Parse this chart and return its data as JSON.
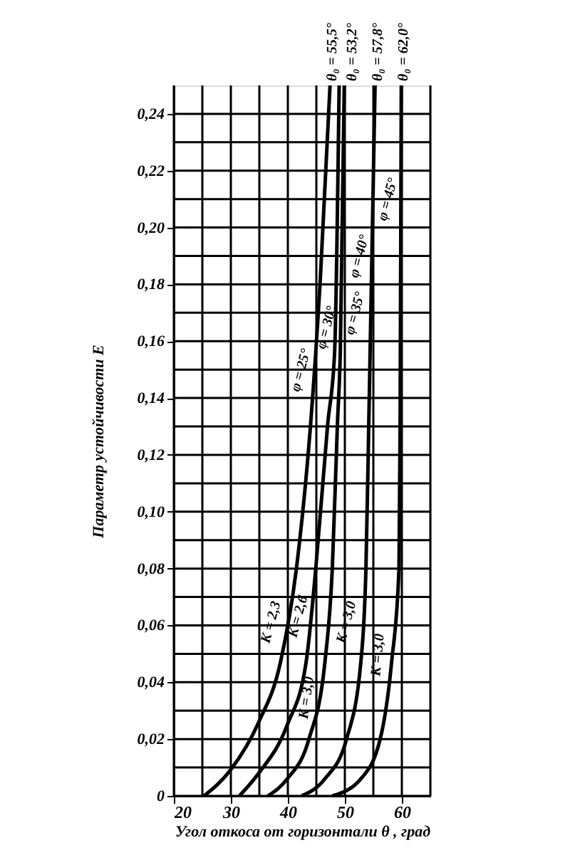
{
  "chart_data": {
    "type": "line",
    "xlabel": "Угол откоса от горизонтали θ , град",
    "ylabel": "Параметр устойчивости E",
    "xlim": [
      20,
      65
    ],
    "xticks": [
      20,
      30,
      40,
      50,
      60,
      {
        "value": 25,
        "label": null
      },
      {
        "value": 35,
        "label": null
      },
      {
        "value": 45,
        "label": null
      },
      {
        "value": 55,
        "label": null
      },
      {
        "value": 65,
        "label": null
      }
    ],
    "ylim": [
      0,
      0.25
    ],
    "yticks": [
      0,
      {
        "value": 0.01,
        "label": null
      },
      {
        "value": 0.02,
        "label": "0,02"
      },
      {
        "value": 0.03,
        "label": null
      },
      {
        "value": 0.04,
        "label": "0,04"
      },
      {
        "value": 0.05,
        "label": null
      },
      {
        "value": 0.06,
        "label": "0,06"
      },
      {
        "value": 0.07,
        "label": null
      },
      {
        "value": 0.08,
        "label": "0,08"
      },
      {
        "value": 0.09,
        "label": null
      },
      {
        "value": 0.1,
        "label": "0,10"
      },
      {
        "value": 0.11,
        "label": null
      },
      {
        "value": 0.12,
        "label": "0,12"
      },
      {
        "value": 0.13,
        "label": null
      },
      {
        "value": 0.14,
        "label": "0,14"
      },
      {
        "value": 0.15,
        "label": null
      },
      {
        "value": 0.16,
        "label": "0,16"
      },
      {
        "value": 0.17,
        "label": null
      },
      {
        "value": 0.18,
        "label": "0,18"
      },
      {
        "value": 0.19,
        "label": null
      },
      {
        "value": 0.2,
        "label": "0,20"
      },
      {
        "value": 0.21,
        "label": null
      },
      {
        "value": 0.22,
        "label": "0,22"
      },
      {
        "value": 0.23,
        "label": null
      },
      {
        "value": 0.24,
        "label": "0,24"
      }
    ],
    "grid": true,
    "marker": "none",
    "line_style": "solid",
    "series": [
      {
        "color": "#000000",
        "x": [
          25.3,
          29.9,
          34.9,
          38.7,
          41.5,
          44,
          45.7,
          47.4
        ],
        "values": [
          0,
          0.009,
          0.026,
          0.047,
          0.08,
          0.131,
          0.182,
          0.25
        ]
      },
      {
        "color": "#000000",
        "x": [
          31.5,
          34.9,
          39.9,
          43.2,
          44.9,
          47,
          48.2,
          49
        ],
        "values": [
          0,
          0.008,
          0.025,
          0.047,
          0.08,
          0.131,
          0.156,
          0.25
        ]
      },
      {
        "color": "#000000",
        "x": [
          36.5,
          39.9,
          43.7,
          46.5,
          47.8,
          48.7,
          49.2,
          49.9
        ],
        "values": [
          0,
          0.006,
          0.02,
          0.047,
          0.08,
          0.131,
          0.156,
          0.25
        ]
      },
      {
        "color": "#000000",
        "x": [
          42.4,
          46.5,
          50.3,
          52.8,
          53.7,
          54.2,
          55.3
        ],
        "values": [
          0,
          0.006,
          0.02,
          0.047,
          0.08,
          0.131,
          0.25
        ]
      },
      {
        "color": "#000000",
        "x": [
          47.8,
          52.8,
          56.2,
          58.2,
          59.5,
          59.7,
          59.9
        ],
        "values": [
          0,
          0.006,
          0.02,
          0.047,
          0.08,
          0.131,
          0.25
        ]
      }
    ],
    "annotations": [
      "K = 2,3",
      "K = 2,6",
      "K = 3,0",
      "K = 3,0",
      "K = 3,0",
      "φ = 25°",
      "φ = 30°",
      "φ = 35°",
      "φ = 40°",
      "φ = 45°",
      "θ₀ = 55,5°",
      "θ₀ = 53,2°",
      "θ₀ = 57,8°",
      "θ₀ = 62,0°"
    ]
  }
}
